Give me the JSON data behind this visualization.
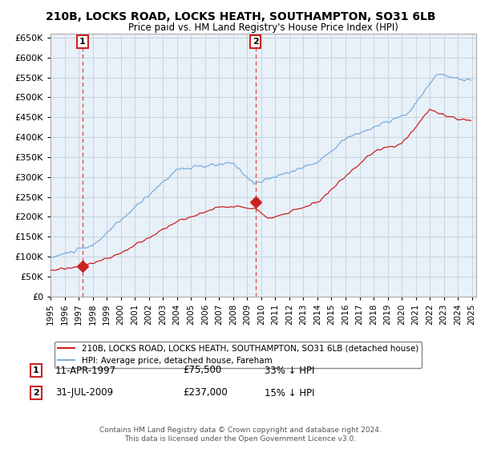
{
  "title": "210B, LOCKS ROAD, LOCKS HEATH, SOUTHAMPTON, SO31 6LB",
  "subtitle": "Price paid vs. HM Land Registry's House Price Index (HPI)",
  "ylim": [
    0,
    660000
  ],
  "yticks": [
    0,
    50000,
    100000,
    150000,
    200000,
    250000,
    300000,
    350000,
    400000,
    450000,
    500000,
    550000,
    600000,
    650000
  ],
  "xlim_start": 1995.0,
  "xlim_end": 2025.3,
  "background_color": "#ffffff",
  "chart_bg_color": "#e8f0f8",
  "grid_color": "#c8d4e0",
  "hpi_line_color": "#7aaddb",
  "price_line_color": "#cc2222",
  "vline_color": "#dd4444",
  "ann1_x": 1997.28,
  "ann1_y": 75500,
  "ann2_x": 2009.58,
  "ann2_y": 237000,
  "legend_entry1": "210B, LOCKS ROAD, LOCKS HEATH, SOUTHAMPTON, SO31 6LB (detached house)",
  "legend_entry2": "HPI: Average price, detached house, Fareham",
  "row1_label": "1",
  "row1_date": "11-APR-1997",
  "row1_price": "£75,500",
  "row1_hpi": "33% ↓ HPI",
  "row2_label": "2",
  "row2_date": "31-JUL-2009",
  "row2_price": "£237,000",
  "row2_hpi": "15% ↓ HPI",
  "footer": "Contains HM Land Registry data © Crown copyright and database right 2024.\nThis data is licensed under the Open Government Licence v3.0."
}
